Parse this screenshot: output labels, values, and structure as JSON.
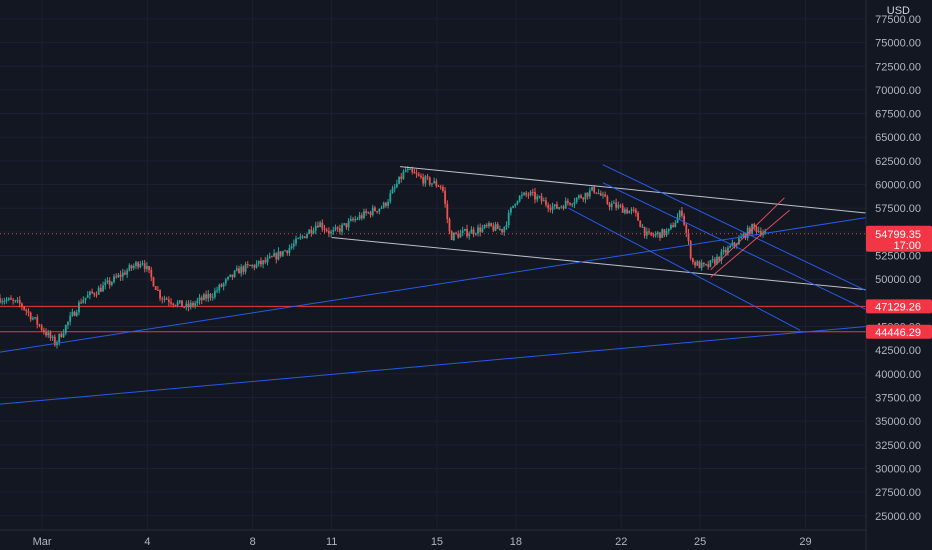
{
  "currency_label": "USD",
  "chart_data": {
    "type": "candlestick",
    "currency": "USD",
    "y_ticks": [
      25000,
      27500,
      30000,
      32500,
      35000,
      37500,
      40000,
      42500,
      45000,
      47500,
      50000,
      52500,
      55000,
      57500,
      60000,
      62500,
      65000,
      67500,
      70000,
      72500,
      75000,
      77500
    ],
    "y_tick_labels": [
      "25000.00",
      "27500.00",
      "30000.00",
      "32500.00",
      "35000.00",
      "37500.00",
      "40000.00",
      "42500.00",
      "45000.00",
      "47500.00",
      "50000.00",
      "52500.00",
      "55000.00",
      "57500.00",
      "60000.00",
      "62500.00",
      "65000.00",
      "67500.00",
      "70000.00",
      "72500.00",
      "75000.00",
      "77500.00"
    ],
    "ylim": [
      23500,
      79500
    ],
    "x_labels": [
      "Mar",
      "4",
      "8",
      "11",
      "15",
      "18",
      "22",
      "25",
      "29"
    ],
    "x_label_days": [
      0,
      4,
      8,
      11,
      15,
      18,
      22,
      25,
      29
    ],
    "xlim": [
      -1.6,
      31.3
    ],
    "current_price": {
      "value": 54799.35,
      "label": "54799.35",
      "countdown": "17:00"
    },
    "horizontal_levels": [
      {
        "value": 47129.26,
        "label": "47129.26"
      },
      {
        "value": 44446.29,
        "label": "44446.29"
      }
    ],
    "anchor_closes": [
      [
        -1.6,
        48000
      ],
      [
        -0.8,
        47300
      ],
      [
        0.5,
        43200
      ],
      [
        1.5,
        47800
      ],
      [
        2.5,
        49500
      ],
      [
        3.8,
        52000
      ],
      [
        4.5,
        48200
      ],
      [
        5.5,
        47000
      ],
      [
        6.5,
        48500
      ],
      [
        7.5,
        51000
      ],
      [
        8.5,
        51800
      ],
      [
        9.5,
        53500
      ],
      [
        10.5,
        56000
      ],
      [
        11.0,
        54800
      ],
      [
        12.0,
        56500
      ],
      [
        13.0,
        57800
      ],
      [
        13.8,
        61500
      ],
      [
        14.5,
        60500
      ],
      [
        15.2,
        59800
      ],
      [
        15.5,
        54500
      ],
      [
        16.2,
        55000
      ],
      [
        17.0,
        55500
      ],
      [
        17.5,
        55200
      ],
      [
        18.0,
        58500
      ],
      [
        18.5,
        59000
      ],
      [
        19.5,
        57500
      ],
      [
        20.5,
        58800
      ],
      [
        21.0,
        59500
      ],
      [
        21.5,
        58000
      ],
      [
        22.5,
        57000
      ],
      [
        23.0,
        54500
      ],
      [
        23.8,
        55000
      ],
      [
        24.3,
        57200
      ],
      [
        24.7,
        51800
      ],
      [
        25.2,
        51200
      ],
      [
        25.8,
        52500
      ],
      [
        26.5,
        54200
      ],
      [
        27.0,
        55500
      ],
      [
        27.5,
        54799.35
      ]
    ],
    "trendlines": [
      {
        "kind": "channel-upper",
        "color": "#d1d4dc",
        "from": [
          13.6,
          61900
        ],
        "to": [
          31.3,
          57000
        ]
      },
      {
        "kind": "channel-lower",
        "color": "#d1d4dc",
        "from": [
          11.0,
          54400
        ],
        "to": [
          31.3,
          48900
        ]
      },
      {
        "kind": "rising-support",
        "color": "#2962ff",
        "from": [
          -1.6,
          42300
        ],
        "to": [
          31.3,
          56500
        ]
      },
      {
        "kind": "long-support",
        "color": "#2962ff",
        "from": [
          -1.6,
          36800
        ],
        "to": [
          31.3,
          45000
        ]
      },
      {
        "kind": "descending-channel-upper",
        "color": "#2962ff",
        "from": [
          21.3,
          62100
        ],
        "to": [
          31.3,
          48800
        ]
      },
      {
        "kind": "descending-channel-mid",
        "color": "#2962ff",
        "from": [
          21.3,
          60200
        ],
        "to": [
          31.3,
          46800
        ]
      },
      {
        "kind": "descending-channel-lower",
        "color": "#2962ff",
        "from": [
          20.0,
          57500
        ],
        "to": [
          28.8,
          44600
        ]
      },
      {
        "kind": "rising-channel-upper",
        "color": "#f7525f",
        "from": [
          25.4,
          51000
        ],
        "to": [
          28.2,
          58600
        ]
      },
      {
        "kind": "rising-channel-lower",
        "color": "#f7525f",
        "from": [
          25.4,
          50200
        ],
        "to": [
          28.4,
          57300
        ]
      }
    ]
  },
  "colors": {
    "up": "#26a69a",
    "down": "#ef5350",
    "background": "#131722",
    "grid": "#1c2030",
    "text": "#b2b5be",
    "current": "#f23645"
  }
}
